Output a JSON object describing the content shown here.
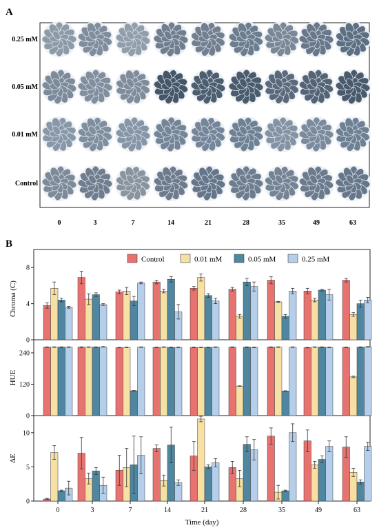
{
  "panel_a": {
    "letter": "A",
    "rows": [
      "0.25 mM",
      "0.05 mM",
      "0.01 mM",
      "Control"
    ],
    "columns": [
      "0",
      "3",
      "7",
      "14",
      "21",
      "28",
      "35",
      "49",
      "63"
    ]
  },
  "panel_b": {
    "letter": "B"
  },
  "chart_data": {
    "type": "bar",
    "xlabel": "Time (day)",
    "categories": [
      "0",
      "3",
      "7",
      "14",
      "21",
      "28",
      "35",
      "49",
      "63"
    ],
    "legend": {
      "placement": "top-right",
      "entries": [
        "Control",
        "0.01 mM",
        "0.05 mM",
        "0.25 mM"
      ]
    },
    "colors": {
      "Control": "#e8726f",
      "0.01 mM": "#f7e0a4",
      "0.05 mM": "#4f87a1",
      "0.25 mM": "#b5cfeb"
    },
    "subplots": [
      {
        "ylabel": "Chroma (C)",
        "ylim": [
          0,
          10
        ],
        "yticks": [
          0,
          4,
          8
        ],
        "series": [
          {
            "name": "Control",
            "values": [
              3.8,
              6.9,
              5.3,
              6.4,
              5.7,
              5.6,
              6.6,
              5.4,
              6.6
            ],
            "errors": [
              0.3,
              0.7,
              0.2,
              0.2,
              0.2,
              0.2,
              0.4,
              0.3,
              0.2
            ]
          },
          {
            "name": "0.01 mM",
            "values": [
              5.7,
              4.5,
              5.4,
              5.4,
              6.9,
              2.6,
              4.2,
              4.4,
              2.8
            ],
            "errors": [
              0.7,
              0.6,
              0.4,
              0.2,
              0.4,
              0.2,
              0.05,
              0.2,
              0.2
            ]
          },
          {
            "name": "0.05 mM",
            "values": [
              4.4,
              5.0,
              4.3,
              6.7,
              4.9,
              6.4,
              2.6,
              5.5,
              4.0
            ],
            "errors": [
              0.2,
              0.2,
              0.5,
              0.3,
              0.2,
              0.4,
              0.2,
              0.1,
              0.4
            ]
          },
          {
            "name": "0.25 mM",
            "values": [
              3.6,
              3.9,
              6.3,
              3.1,
              4.3,
              5.9,
              5.4,
              5.0,
              4.4
            ],
            "errors": [
              0.1,
              0.1,
              0.1,
              0.8,
              0.3,
              0.5,
              0.3,
              0.6,
              0.3
            ]
          }
        ]
      },
      {
        "ylabel": "HUE",
        "ylim": [
          0,
          290
        ],
        "yticks": [
          0,
          120,
          240
        ],
        "series": [
          {
            "name": "Control",
            "values": [
              262,
              262,
              260,
              261,
              261,
              262,
              262,
              260,
              261
            ],
            "errors": [
              1,
              1,
              1,
              1,
              1,
              1,
              1,
              1,
              1
            ]
          },
          {
            "name": "0.01 mM",
            "values": [
              262,
              262,
              261,
              262,
              261,
              113,
              262,
              262,
              148
            ],
            "errors": [
              1,
              1,
              1,
              1,
              1,
              1,
              1,
              1,
              3
            ]
          },
          {
            "name": "0.05 mM",
            "values": [
              262,
              262,
              95,
              261,
              261,
              262,
              94,
              262,
              262
            ],
            "errors": [
              1,
              1,
              1,
              1,
              1,
              1,
              1,
              1,
              1
            ]
          },
          {
            "name": "0.25 mM",
            "values": [
              262,
              263,
              262,
              261,
              262,
              261,
              262,
              261,
              263
            ],
            "errors": [
              1,
              1,
              1,
              1,
              1,
              1,
              1,
              1,
              1
            ]
          }
        ]
      },
      {
        "ylabel": "ΔE",
        "ylim": [
          0,
          12.5
        ],
        "yticks": [
          0,
          5,
          10
        ],
        "series": [
          {
            "name": "Control",
            "values": [
              0.3,
              7.0,
              4.5,
              7.7,
              6.6,
              4.9,
              9.5,
              8.8,
              7.9
            ],
            "errors": [
              0.1,
              2.3,
              2.2,
              0.5,
              2.1,
              0.9,
              1.2,
              1.6,
              1.5
            ]
          },
          {
            "name": "0.01 mM",
            "values": [
              7.1,
              3.3,
              4.9,
              3.0,
              12.0,
              3.3,
              1.3,
              5.3,
              4.2
            ],
            "errors": [
              1.0,
              0.8,
              2.8,
              0.8,
              0.4,
              1.2,
              1.0,
              0.5,
              0.6
            ]
          },
          {
            "name": "0.05 mM",
            "values": [
              1.5,
              4.4,
              5.3,
              8.2,
              5.0,
              8.3,
              1.5,
              6.1,
              2.8
            ],
            "errors": [
              0.1,
              0.5,
              4.2,
              2.6,
              0.3,
              1.1,
              0.1,
              0.5,
              0.3
            ]
          },
          {
            "name": "0.25 mM",
            "values": [
              1.9,
              2.3,
              6.7,
              2.7,
              5.6,
              7.5,
              10.0,
              8.0,
              8.0
            ],
            "errors": [
              1.0,
              1.2,
              2.7,
              0.4,
              0.6,
              1.5,
              1.3,
              0.8,
              0.6
            ]
          }
        ]
      }
    ]
  }
}
